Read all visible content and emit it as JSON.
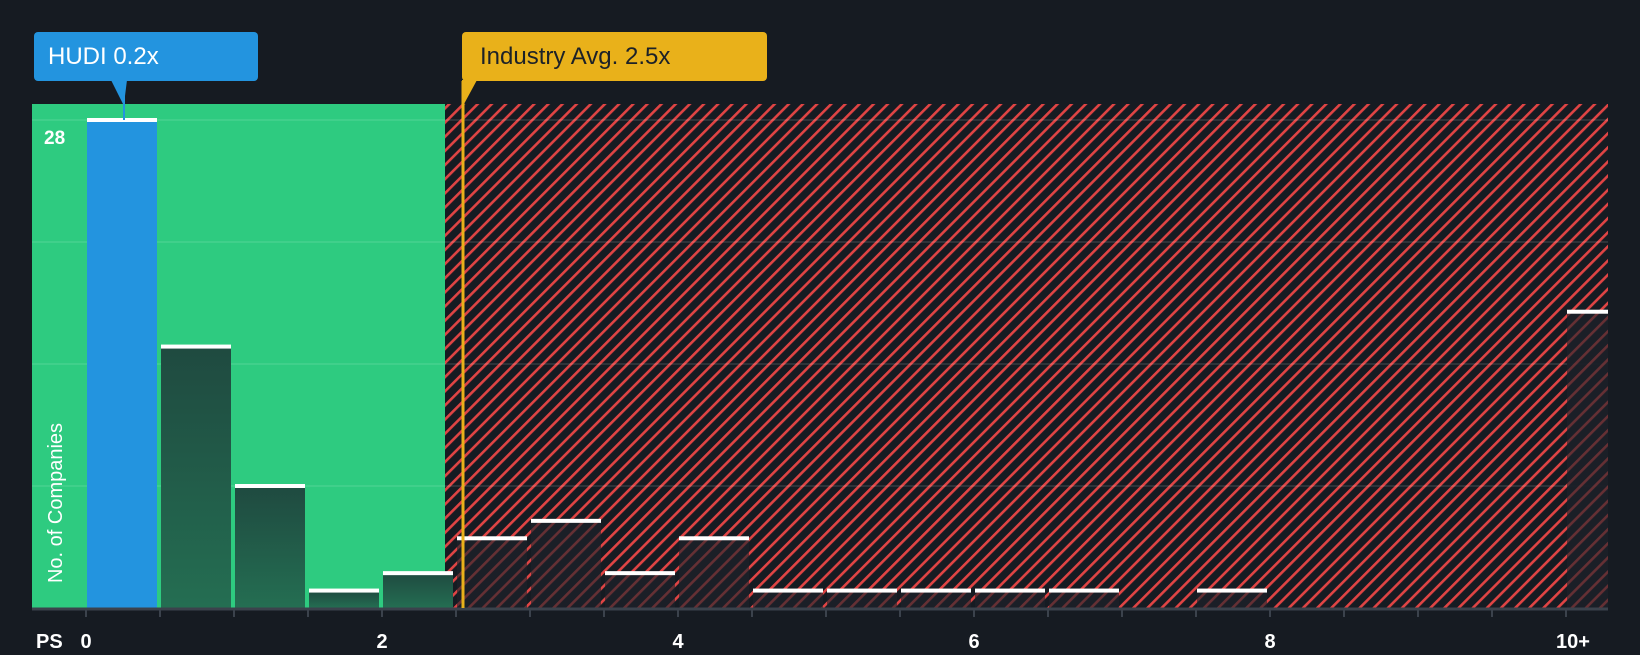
{
  "colors": {
    "background": "#161b22",
    "undervalued_zone": "#2ecb80",
    "overvalued_hatch": "#e04444",
    "company_bar": "#2394df",
    "industry_line": "#e9b11a",
    "bar_top_cap": "#ffffff",
    "axis": "#3b424c"
  },
  "callouts": {
    "company": {
      "label": "HUDI 0.2x",
      "value": 0.2
    },
    "industry": {
      "label": "Industry Avg. 2.5x",
      "value": 2.5
    }
  },
  "axis": {
    "x_title": "PS",
    "y_title": "No. of Companies",
    "y_max_label": "28",
    "x_tick_labels": [
      {
        "label": "0",
        "value": 0
      },
      {
        "label": "2",
        "value": 2
      },
      {
        "label": "4",
        "value": 4
      },
      {
        "label": "6",
        "value": 6
      },
      {
        "label": "8",
        "value": 8
      },
      {
        "label": "10+",
        "value": 10
      }
    ]
  },
  "chart_data": {
    "type": "bar",
    "title": "",
    "xlabel": "PS",
    "ylabel": "No. of Companies",
    "ylim": [
      0,
      28
    ],
    "y_gridlines": [
      0,
      7,
      14,
      21,
      28
    ],
    "bin_width": 0.5,
    "categories": [
      "0-0.5",
      "0.5-1",
      "1-1.5",
      "1.5-2",
      "2-2.5",
      "2.5-3",
      "3-3.5",
      "3.5-4",
      "4-4.5",
      "4.5-5",
      "5-5.5",
      "5.5-6",
      "6-6.5",
      "6.5-7",
      "7-7.5",
      "7.5-8",
      "8-8.5",
      "8.5-9",
      "9-9.5",
      "9.5-10",
      "10+"
    ],
    "bin_starts": [
      0,
      0.5,
      1,
      1.5,
      2,
      2.5,
      3,
      3.5,
      4,
      4.5,
      5,
      5.5,
      6,
      6.5,
      7,
      7.5,
      8,
      8.5,
      9,
      9.5,
      10
    ],
    "values": [
      28,
      15,
      7,
      1,
      2,
      4,
      5,
      2,
      4,
      1,
      1,
      1,
      1,
      1,
      0,
      1,
      0,
      0,
      0,
      0,
      17
    ],
    "highlight_bin_index": 0,
    "company_value": 0.2,
    "industry_average": 2.5,
    "annotations": [
      "HUDI 0.2x",
      "Industry Avg. 2.5x"
    ],
    "zones": [
      {
        "name": "below industry average",
        "from": 0,
        "to": 2.5,
        "color": "#2ecb80"
      },
      {
        "name": "above industry average",
        "from": 2.5,
        "to": 10.5,
        "style": "red hatch"
      }
    ],
    "legend": null
  }
}
